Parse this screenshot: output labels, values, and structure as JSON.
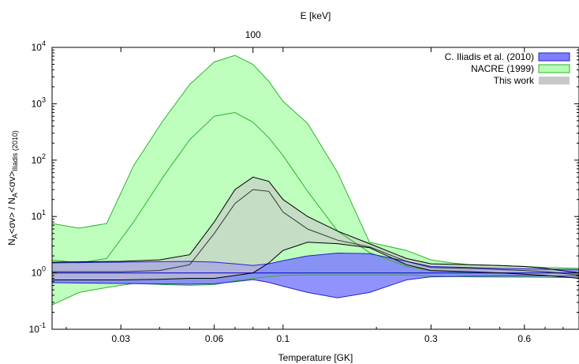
{
  "chart_data": {
    "type": "area",
    "title": "",
    "xlabel": "Temperature [GK]",
    "ylabel": "N_A<σv> / N_A<σv>_Iliadis (2010)",
    "ylabel_main": "N",
    "ylabel_parts": [
      "A",
      "<σv> / N",
      "A",
      "<σv>",
      "Iliadis (2010)"
    ],
    "top_xlabel": "E [keV]",
    "top_ticks": [
      {
        "x": 0.08,
        "label": "100"
      }
    ],
    "x_scale": "log",
    "y_scale": "log",
    "xlim": [
      0.018,
      0.9
    ],
    "ylim": [
      0.1,
      10000
    ],
    "grid": false,
    "legend_position": "top-right",
    "x_ticks": [
      {
        "value": 0.03,
        "label": "0.03"
      },
      {
        "value": 0.06,
        "label": "0.06"
      },
      {
        "value": 0.1,
        "label": "0.1"
      },
      {
        "value": 0.3,
        "label": "0.3"
      },
      {
        "value": 0.6,
        "label": "0.6"
      }
    ],
    "y_ticks": [
      {
        "value": 0.1,
        "base": "10",
        "exp": "-1"
      },
      {
        "value": 1,
        "base": "10",
        "exp": "0"
      },
      {
        "value": 10,
        "base": "10",
        "exp": "1"
      },
      {
        "value": 100,
        "base": "10",
        "exp": "2"
      },
      {
        "value": 1000,
        "base": "10",
        "exp": "3"
      },
      {
        "value": 10000,
        "base": "10",
        "exp": "4"
      }
    ],
    "series": [
      {
        "name": "NACRE (1999)",
        "fill": "#b3ffb3",
        "stroke": "#2bb52b",
        "x": [
          0.018,
          0.022,
          0.027,
          0.033,
          0.041,
          0.05,
          0.06,
          0.07,
          0.08,
          0.09,
          0.1,
          0.12,
          0.15,
          0.19,
          0.25,
          0.3,
          0.35,
          0.4,
          0.5,
          0.6,
          0.7,
          0.9
        ],
        "upper": [
          7.5,
          6.2,
          7.5,
          80,
          500,
          2200,
          5500,
          7200,
          5000,
          2500,
          1100,
          450,
          60,
          3.5,
          2.5,
          1.7,
          1.5,
          1.4,
          1.35,
          1.3,
          1.25,
          1.2
        ],
        "middle": [
          1.7,
          1.5,
          1.8,
          8,
          50,
          230,
          600,
          700,
          470,
          250,
          120,
          28,
          5.5,
          2.3,
          1.3,
          1.1,
          1.05,
          1.02,
          1.0,
          1.0,
          1.0,
          1.0
        ],
        "lower": [
          0.27,
          0.45,
          0.55,
          0.65,
          0.62,
          0.6,
          0.62,
          0.72,
          0.8,
          0.85,
          0.9,
          0.92,
          0.92,
          0.92,
          0.92,
          0.88,
          0.86,
          0.85,
          0.84,
          0.84,
          0.83,
          0.83
        ]
      },
      {
        "name": "C. Iliadis et al. (2010)",
        "fill": "#7f7fff",
        "stroke": "#2323cc",
        "x": [
          0.018,
          0.03,
          0.05,
          0.06,
          0.07,
          0.08,
          0.09,
          0.1,
          0.12,
          0.15,
          0.19,
          0.25,
          0.3,
          0.4,
          0.5,
          0.6,
          0.7,
          0.9
        ],
        "upper": [
          1.5,
          1.55,
          1.6,
          1.55,
          1.45,
          1.35,
          1.45,
          1.65,
          2.0,
          2.25,
          2.2,
          1.6,
          1.3,
          1.25,
          1.2,
          1.18,
          1.16,
          1.15
        ],
        "middle": [
          1,
          1,
          1,
          1,
          1,
          1,
          1,
          1,
          1,
          1,
          1,
          1,
          1,
          1,
          1,
          1,
          1,
          1
        ],
        "lower": [
          0.67,
          0.65,
          0.63,
          0.64,
          0.7,
          0.76,
          0.68,
          0.58,
          0.45,
          0.36,
          0.45,
          0.75,
          0.85,
          0.87,
          0.88,
          0.88,
          0.88,
          0.88
        ]
      },
      {
        "name": "This work",
        "fill": "#c8c8c8",
        "stroke": "#000000",
        "x": [
          0.018,
          0.03,
          0.04,
          0.05,
          0.06,
          0.07,
          0.08,
          0.09,
          0.1,
          0.12,
          0.15,
          0.19,
          0.25,
          0.3,
          0.4,
          0.5,
          0.6,
          0.7,
          0.9
        ],
        "upper": [
          1.55,
          1.6,
          1.7,
          2.1,
          8,
          30,
          50,
          42,
          20,
          10,
          5.5,
          3.3,
          1.8,
          1.45,
          1.4,
          1.35,
          1.3,
          1.2,
          1.0
        ],
        "middle": [
          1.05,
          1.05,
          1.1,
          1.4,
          5,
          17,
          30,
          28,
          12,
          6,
          3.8,
          2.9,
          1.6,
          1.25,
          1.2,
          1.15,
          1.1,
          1.05,
          0.92
        ],
        "lower": [
          0.75,
          0.75,
          0.77,
          0.8,
          0.8,
          0.9,
          1.0,
          1.5,
          2.5,
          3.5,
          3.3,
          2.8,
          1.4,
          1.1,
          1.05,
          1.0,
          0.95,
          0.9,
          0.8
        ]
      }
    ]
  }
}
